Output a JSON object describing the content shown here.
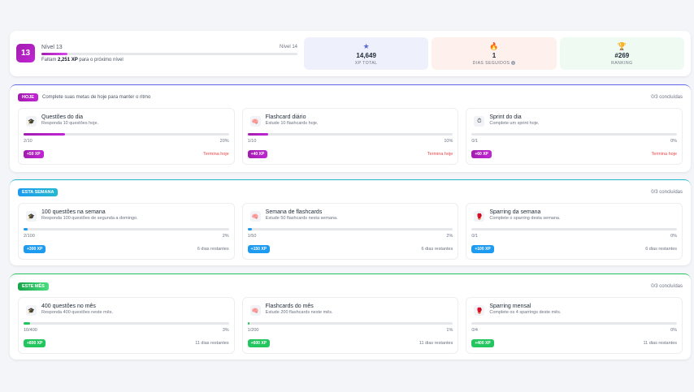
{
  "header": {
    "level_badge": "13",
    "level_label": "Nível 13",
    "next_level_label": "Nível 14",
    "level_progress_fraction": 0.1,
    "remaining_prefix": "Faltam ",
    "remaining_xp": "2,251 XP",
    "remaining_suffix": " para o próximo nível",
    "stats": {
      "xp": {
        "icon": "star-icon",
        "value": "14,649",
        "label": "XP TOTAL"
      },
      "streak": {
        "icon": "flame-icon",
        "value": "1",
        "label": "DIAS SEGUIDOS",
        "info_glyph": "i"
      },
      "rank": {
        "icon": "trophy-icon",
        "value": "#269",
        "label": "RANKING"
      }
    }
  },
  "sections": {
    "hoje": {
      "tag": "HOJE",
      "description": "Complete suas metas de hoje para manter o ritmo",
      "count": "0/3 concluídas",
      "cards": [
        {
          "icon": "question-icon",
          "title": "Questões do dia",
          "subtitle": "Responda 10 questões hoje.",
          "progress": "2/10",
          "percent": "20%",
          "fraction": 0.2,
          "xp": "+50 XP",
          "footer": "Termina hoje"
        },
        {
          "icon": "flashcard-icon",
          "title": "Flashcard diário",
          "subtitle": "Estude 10 flashcards hoje.",
          "progress": "1/10",
          "percent": "10%",
          "fraction": 0.1,
          "xp": "+40 XP",
          "footer": "Termina hoje"
        },
        {
          "icon": "sprint-icon",
          "title": "Sprint do dia",
          "subtitle": "Complete um sprint hoje.",
          "progress": "0/1",
          "percent": "0%",
          "fraction": 0,
          "xp": "+60 XP",
          "footer": "Termina hoje"
        }
      ]
    },
    "semana": {
      "tag": "ESTA SEMANA",
      "description": "",
      "count": "0/3 concluídas",
      "cards": [
        {
          "icon": "question-icon",
          "title": "100 questões na semana",
          "subtitle": "Responda 100 questões de segunda a domingo.",
          "progress": "2/100",
          "percent": "2%",
          "fraction": 0.02,
          "xp": "+300 XP",
          "footer": "6 dias restantes"
        },
        {
          "icon": "flashcard-icon",
          "title": "Semana de flashcards",
          "subtitle": "Estude 50 flashcards nesta semana.",
          "progress": "1/50",
          "percent": "2%",
          "fraction": 0.02,
          "xp": "+150 XP",
          "footer": "6 dias restantes"
        },
        {
          "icon": "sparring-icon",
          "title": "Sparring da semana",
          "subtitle": "Complete o sparring desta semana.",
          "progress": "0/1",
          "percent": "0%",
          "fraction": 0,
          "xp": "+100 XP",
          "footer": "6 dias restantes"
        }
      ]
    },
    "mes": {
      "tag": "ESTE MÊS",
      "description": "",
      "count": "0/3 concluídas",
      "cards": [
        {
          "icon": "question-icon",
          "title": "400 questões no mês",
          "subtitle": "Responda 400 questões neste mês.",
          "progress": "10/400",
          "percent": "3%",
          "fraction": 0.03,
          "xp": "+800 XP",
          "footer": "11 dias restantes"
        },
        {
          "icon": "flashcard-icon",
          "title": "Flashcards do mês",
          "subtitle": "Estude 200 flashcards neste mês.",
          "progress": "1/200",
          "percent": "1%",
          "fraction": 0.01,
          "xp": "+600 XP",
          "footer": "11 dias restantes"
        },
        {
          "icon": "sparring-icon",
          "title": "Sparring mensal",
          "subtitle": "Complete os 4 sparrings deste mês.",
          "progress": "0/4",
          "percent": "0%",
          "fraction": 0,
          "xp": "+400 XP",
          "footer": "11 dias restantes"
        }
      ]
    }
  }
}
